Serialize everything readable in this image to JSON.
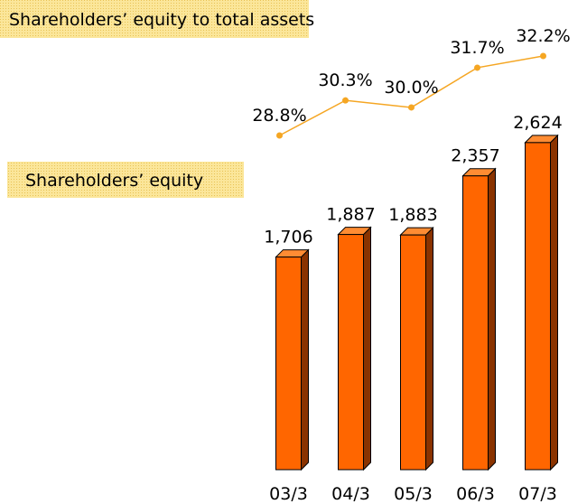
{
  "chart_data": {
    "type": "bar",
    "categories": [
      "03/3",
      "04/3",
      "05/3",
      "06/3",
      "07/3"
    ],
    "series": [
      {
        "name": "Shareholders’ equity",
        "color": "#ff6600",
        "values": [
          1706,
          1887,
          1883,
          2357,
          2624
        ],
        "value_labels": [
          "1,706",
          "1,887",
          "1,883",
          "2,357",
          "2,624"
        ]
      },
      {
        "name": "Shareholders’ equity to total assets",
        "type": "line",
        "axis": "y2",
        "color": "#f5a623",
        "values": [
          28.8,
          30.3,
          30.0,
          31.7,
          32.2
        ],
        "value_labels": [
          "28.8%",
          "30.3%",
          "30.0%",
          "31.7%",
          "32.2%"
        ]
      }
    ],
    "ylim": [
      0,
      3000
    ],
    "y2lim": [
      26,
      34
    ]
  }
}
